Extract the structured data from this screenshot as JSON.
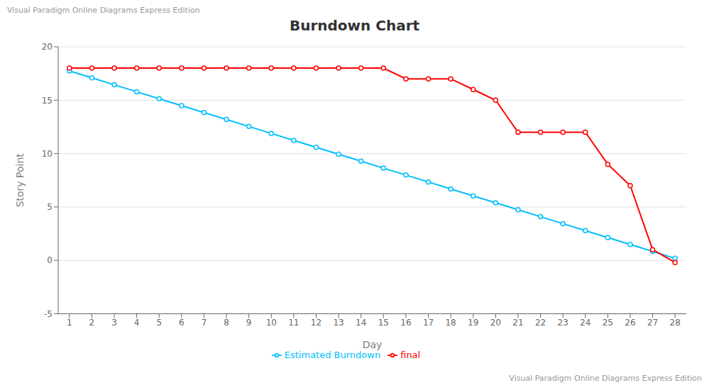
{
  "chart_data": {
    "type": "line",
    "title": "Burndown Chart",
    "x_label": "Day",
    "y_label": "Story Point",
    "x": [
      1,
      2,
      3,
      4,
      5,
      6,
      7,
      8,
      9,
      10,
      11,
      12,
      13,
      14,
      15,
      16,
      17,
      18,
      19,
      20,
      21,
      22,
      23,
      24,
      25,
      26,
      27,
      28
    ],
    "series": [
      {
        "name": "Estimated Burndown",
        "color": "#00BFFF",
        "marker": "circle",
        "line_style": "solid",
        "values": [
          17.74,
          17.09,
          16.44,
          15.79,
          15.14,
          14.49,
          13.84,
          13.19,
          12.54,
          11.89,
          11.24,
          10.59,
          9.94,
          9.29,
          8.64,
          7.99,
          7.34,
          6.69,
          6.04,
          5.39,
          4.74,
          4.09,
          3.44,
          2.79,
          2.14,
          1.49,
          0.84,
          0.19
        ]
      },
      {
        "name": "final",
        "color": "#FF0000",
        "marker": "circle",
        "line_style": "solid",
        "values": [
          18,
          18,
          18,
          18,
          18,
          18,
          18,
          18,
          18,
          18,
          18,
          18,
          18,
          18,
          18,
          17,
          17,
          17,
          16,
          15,
          12,
          12,
          12,
          12,
          9,
          7,
          1,
          -0.2
        ]
      }
    ],
    "xlim": [
      0.5,
      28.5
    ],
    "xticks": [
      1,
      2,
      3,
      4,
      5,
      6,
      7,
      8,
      9,
      10,
      11,
      12,
      13,
      14,
      15,
      16,
      17,
      18,
      19,
      20,
      21,
      22,
      23,
      24,
      25,
      26,
      27,
      28
    ],
    "ylim": [
      -5,
      20
    ],
    "yticks": [
      -5,
      0,
      5,
      10,
      15,
      20
    ],
    "grid": true,
    "legend": "bottom",
    "annotations": [
      "Visual Paradigm Online Diagrams Express Edition",
      "Visual Paradigm Online Diagrams Express Edition"
    ]
  }
}
